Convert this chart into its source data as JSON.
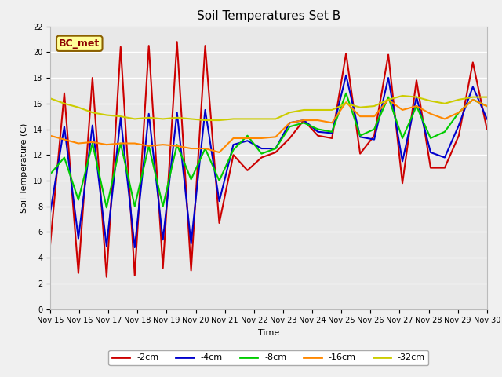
{
  "title": "Soil Temperatures Set B",
  "xlabel": "Time",
  "ylabel": "Soil Temperature (C)",
  "annotation": "BC_met",
  "ylim": [
    0,
    22
  ],
  "series": {
    "-2cm": {
      "color": "#cc0000",
      "data": [
        5.0,
        16.8,
        2.8,
        18.0,
        2.5,
        20.4,
        2.6,
        20.5,
        3.2,
        20.8,
        3.0,
        20.5,
        6.7,
        12.0,
        10.8,
        11.8,
        12.2,
        13.3,
        14.7,
        13.5,
        13.3,
        19.9,
        12.1,
        13.5,
        19.8,
        9.8,
        17.8,
        11.0,
        11.0,
        13.5,
        19.2,
        14.0
      ]
    },
    "-4cm": {
      "color": "#0000cc",
      "data": [
        7.5,
        14.2,
        5.5,
        14.3,
        4.9,
        14.9,
        4.8,
        15.2,
        5.4,
        15.3,
        5.1,
        15.5,
        8.4,
        12.8,
        13.1,
        12.5,
        12.5,
        14.5,
        14.7,
        13.8,
        13.7,
        18.2,
        13.4,
        13.2,
        18.0,
        11.5,
        16.5,
        12.2,
        11.8,
        14.3,
        17.3,
        14.8
      ]
    },
    "-8cm": {
      "color": "#00cc00",
      "data": [
        10.5,
        11.8,
        8.5,
        12.9,
        7.9,
        12.9,
        8.0,
        12.7,
        8.0,
        12.8,
        10.1,
        12.5,
        10.0,
        12.4,
        13.5,
        12.1,
        12.5,
        14.2,
        14.5,
        14.0,
        13.8,
        16.8,
        13.5,
        14.0,
        16.5,
        13.3,
        15.8,
        13.3,
        13.8,
        15.3,
        16.3,
        15.8
      ]
    },
    "-16cm": {
      "color": "#ff8800",
      "data": [
        13.5,
        13.2,
        12.9,
        13.0,
        12.8,
        12.9,
        12.9,
        12.7,
        12.8,
        12.7,
        12.5,
        12.5,
        12.2,
        13.3,
        13.3,
        13.3,
        13.4,
        14.5,
        14.7,
        14.7,
        14.5,
        16.1,
        15.0,
        15.0,
        16.3,
        15.5,
        15.8,
        15.2,
        14.8,
        15.3,
        16.3,
        15.8
      ]
    },
    "-32cm": {
      "color": "#cccc00",
      "data": [
        16.4,
        16.0,
        15.7,
        15.3,
        15.1,
        15.0,
        14.8,
        14.9,
        14.8,
        14.9,
        14.8,
        14.7,
        14.7,
        14.8,
        14.8,
        14.8,
        14.8,
        15.3,
        15.5,
        15.5,
        15.5,
        16.0,
        15.7,
        15.8,
        16.3,
        16.6,
        16.5,
        16.2,
        16.0,
        16.3,
        16.5,
        16.5
      ]
    }
  },
  "xtick_labels": [
    "Nov 15",
    "Nov 16",
    "Nov 17",
    "Nov 18",
    "Nov 19",
    "Nov 20",
    "Nov 21",
    "Nov 22",
    "Nov 23",
    "Nov 24",
    "Nov 25",
    "Nov 26",
    "Nov 27",
    "Nov 28",
    "Nov 29",
    "Nov 30"
  ],
  "ytick_labels": [
    0,
    2,
    4,
    6,
    8,
    10,
    12,
    14,
    16,
    18,
    20,
    22
  ],
  "fig_facecolor": "#f0f0f0",
  "ax_facecolor": "#e8e8e8",
  "grid_color": "#ffffff",
  "title_fontsize": 11,
  "axis_fontsize": 8,
  "tick_fontsize": 7,
  "legend_fontsize": 8,
  "linewidth": 1.5
}
